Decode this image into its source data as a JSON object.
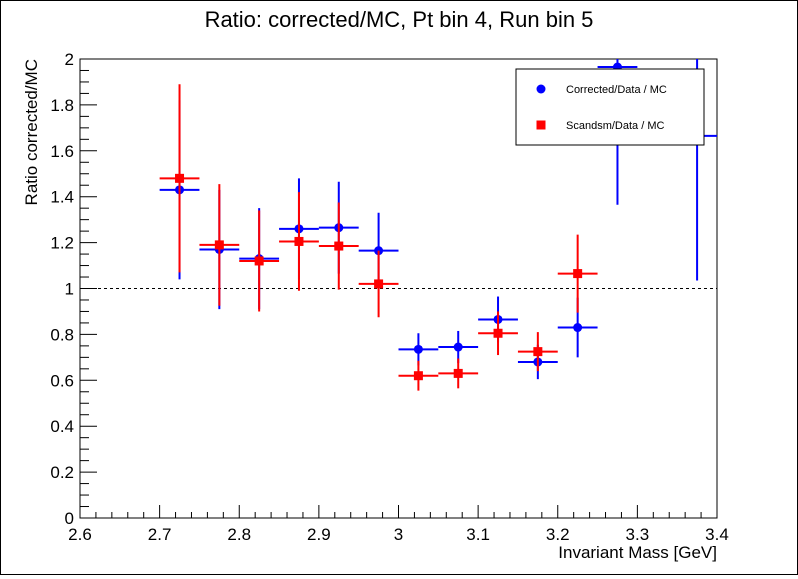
{
  "chart_data": {
    "type": "scatter",
    "title": "Ratio: corrected/MC, Pt bin 4, Run bin 5",
    "xlabel": "Invariant Mass [GeV]",
    "ylabel": "Ratio corrected/MC",
    "xlim": [
      2.6,
      3.4
    ],
    "ylim": [
      0,
      2
    ],
    "x_ticks": [
      "2.6",
      "2.7",
      "2.8",
      "2.9",
      "3",
      "3.1",
      "3.2",
      "3.3",
      "3.4"
    ],
    "y_ticks": [
      "0",
      "0.2",
      "0.4",
      "0.6",
      "0.8",
      "1",
      "1.2",
      "1.4",
      "1.6",
      "1.8",
      "2"
    ],
    "reference_line": 1,
    "legend_position": "top-right",
    "series": [
      {
        "name": "Corrected/Data / MC",
        "color": "#0000ff",
        "marker": "circle",
        "points": [
          {
            "x": 2.725,
            "y": 1.43,
            "xerr": 0.025,
            "yerr": [
              0.39,
              0.39
            ]
          },
          {
            "x": 2.775,
            "y": 1.17,
            "xerr": 0.025,
            "yerr": [
              0.26,
              0.26
            ]
          },
          {
            "x": 2.825,
            "y": 1.13,
            "xerr": 0.025,
            "yerr": [
              0.22,
              0.22
            ]
          },
          {
            "x": 2.875,
            "y": 1.26,
            "xerr": 0.025,
            "yerr": [
              0.22,
              0.22
            ]
          },
          {
            "x": 2.925,
            "y": 1.265,
            "xerr": 0.025,
            "yerr": [
              0.2,
              0.2
            ]
          },
          {
            "x": 2.975,
            "y": 1.165,
            "xerr": 0.025,
            "yerr": [
              0.165,
              0.165
            ]
          },
          {
            "x": 3.025,
            "y": 0.735,
            "xerr": 0.025,
            "yerr": [
              0.07,
              0.07
            ]
          },
          {
            "x": 3.075,
            "y": 0.745,
            "xerr": 0.025,
            "yerr": [
              0.07,
              0.07
            ]
          },
          {
            "x": 3.125,
            "y": 0.865,
            "xerr": 0.025,
            "yerr": [
              0.1,
              0.1
            ]
          },
          {
            "x": 3.175,
            "y": 0.68,
            "xerr": 0.025,
            "yerr": [
              0.075,
              0.075
            ]
          },
          {
            "x": 3.225,
            "y": 0.83,
            "xerr": 0.025,
            "yerr": [
              0.13,
              0.13
            ]
          },
          {
            "x": 3.275,
            "y": 1.965,
            "xerr": 0.025,
            "yerr": [
              0.6,
              0.6
            ]
          },
          {
            "x": 3.375,
            "y": 1.665,
            "xerr": 0.025,
            "yerr": [
              0.63,
              0.63
            ]
          }
        ]
      },
      {
        "name": "Scandsm/Data / MC",
        "color": "#ff0000",
        "marker": "square",
        "points": [
          {
            "x": 2.725,
            "y": 1.48,
            "xerr": 0.025,
            "yerr": [
              0.41,
              0.41
            ]
          },
          {
            "x": 2.775,
            "y": 1.19,
            "xerr": 0.025,
            "yerr": [
              0.265,
              0.265
            ]
          },
          {
            "x": 2.825,
            "y": 1.12,
            "xerr": 0.025,
            "yerr": [
              0.22,
              0.22
            ]
          },
          {
            "x": 2.875,
            "y": 1.205,
            "xerr": 0.025,
            "yerr": [
              0.215,
              0.215
            ]
          },
          {
            "x": 2.925,
            "y": 1.185,
            "xerr": 0.025,
            "yerr": [
              0.19,
              0.19
            ]
          },
          {
            "x": 2.975,
            "y": 1.02,
            "xerr": 0.025,
            "yerr": [
              0.145,
              0.145
            ]
          },
          {
            "x": 3.025,
            "y": 0.62,
            "xerr": 0.025,
            "yerr": [
              0.065,
              0.065
            ]
          },
          {
            "x": 3.075,
            "y": 0.63,
            "xerr": 0.025,
            "yerr": [
              0.065,
              0.065
            ]
          },
          {
            "x": 3.125,
            "y": 0.805,
            "xerr": 0.025,
            "yerr": [
              0.095,
              0.095
            ]
          },
          {
            "x": 3.175,
            "y": 0.725,
            "xerr": 0.025,
            "yerr": [
              0.085,
              0.085
            ]
          },
          {
            "x": 3.225,
            "y": 1.065,
            "xerr": 0.025,
            "yerr": [
              0.17,
              0.17
            ]
          }
        ]
      }
    ]
  }
}
